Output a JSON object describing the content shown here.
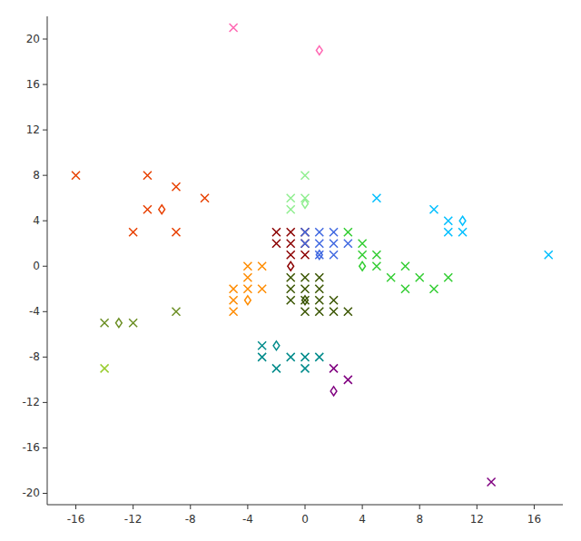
{
  "chart_data": {
    "type": "scatter",
    "series": [
      {
        "color": "#FF69B4",
        "marker": "x",
        "x": [
          -5
        ],
        "values": [
          21
        ]
      },
      {
        "color": "#FF69B4",
        "marker": "diamond",
        "x": [
          1
        ],
        "values": [
          19
        ]
      },
      {
        "color": "#E84000",
        "marker": "x",
        "x": [
          -16,
          -11,
          -9,
          -11,
          -7,
          -12,
          -9
        ],
        "values": [
          8,
          8,
          7,
          5,
          6,
          3,
          3
        ]
      },
      {
        "color": "#E84000",
        "marker": "diamond",
        "x": [
          -10
        ],
        "values": [
          5
        ]
      },
      {
        "color": "#FF8C00",
        "marker": "x",
        "x": [
          -4,
          -3,
          -4,
          -5,
          -3,
          -4,
          -5,
          -5
        ],
        "values": [
          0,
          0,
          -1,
          -2,
          -2,
          -2,
          -3,
          -4
        ]
      },
      {
        "color": "#FF8C00",
        "marker": "diamond",
        "x": [
          -4
        ],
        "values": [
          -3
        ]
      },
      {
        "color": "#8B0000",
        "marker": "x",
        "x": [
          -2,
          -1,
          0,
          -1,
          0,
          -1,
          0,
          -2
        ],
        "values": [
          3,
          3,
          3,
          2,
          2,
          1,
          1,
          2
        ]
      },
      {
        "color": "#8B0000",
        "marker": "diamond",
        "x": [
          -1
        ],
        "values": [
          0
        ]
      },
      {
        "color": "#90EE90",
        "marker": "x",
        "x": [
          0,
          -1,
          -1,
          0
        ],
        "values": [
          8,
          6,
          5,
          6
        ]
      },
      {
        "color": "#90EE90",
        "marker": "diamond",
        "x": [
          0
        ],
        "values": [
          5.5
        ]
      },
      {
        "color": "#32CD32",
        "marker": "x",
        "x": [
          3,
          4,
          4,
          5,
          5,
          6,
          7,
          8,
          7,
          9,
          10
        ],
        "values": [
          3,
          2,
          1,
          1,
          0,
          -1,
          0,
          -1,
          -2,
          -2,
          -1
        ]
      },
      {
        "color": "#32CD32",
        "marker": "diamond",
        "x": [
          4
        ],
        "values": [
          0
        ]
      },
      {
        "color": "#3A5500",
        "marker": "x",
        "x": [
          -1,
          0,
          1,
          -1,
          0,
          1,
          2,
          0,
          1,
          2,
          3,
          -1,
          0,
          1
        ],
        "values": [
          -2,
          -2,
          -2,
          -3,
          -3,
          -3,
          -3,
          -4,
          -4,
          -4,
          -4,
          -1,
          -1,
          -1
        ]
      },
      {
        "color": "#3A5500",
        "marker": "diamond",
        "x": [
          0
        ],
        "values": [
          -3
        ]
      },
      {
        "color": "#4169E1",
        "marker": "x",
        "x": [
          0,
          1,
          2,
          1,
          2,
          3,
          1,
          2,
          0
        ],
        "values": [
          3,
          3,
          3,
          2,
          2,
          2,
          1,
          1,
          2
        ]
      },
      {
        "color": "#4169E1",
        "marker": "diamond",
        "x": [
          1
        ],
        "values": [
          1
        ]
      },
      {
        "color": "#008B8B",
        "marker": "x",
        "x": [
          -3,
          -3,
          -2,
          -1,
          0,
          0,
          1
        ],
        "values": [
          -7,
          -8,
          -9,
          -8,
          -8,
          -9,
          -8
        ]
      },
      {
        "color": "#008B8B",
        "marker": "diamond",
        "x": [
          -2
        ],
        "values": [
          -7
        ]
      },
      {
        "color": "#00BFFF",
        "marker": "x",
        "x": [
          5,
          9,
          10,
          10,
          11,
          17
        ],
        "values": [
          6,
          5,
          4,
          3,
          3,
          1
        ]
      },
      {
        "color": "#00BFFF",
        "marker": "diamond",
        "x": [
          11
        ],
        "values": [
          4
        ]
      },
      {
        "color": "#6B8E23",
        "marker": "x",
        "x": [
          -14,
          -12,
          -9
        ],
        "values": [
          -5,
          -5,
          -4
        ]
      },
      {
        "color": "#6B8E23",
        "marker": "diamond",
        "x": [
          -13
        ],
        "values": [
          -5
        ]
      },
      {
        "color": "#9ACD32",
        "marker": "x",
        "x": [
          -14
        ],
        "values": [
          -9
        ]
      },
      {
        "color": "#800080",
        "marker": "x",
        "x": [
          2,
          3,
          13
        ],
        "values": [
          -9,
          -10,
          -19
        ]
      },
      {
        "color": "#800080",
        "marker": "diamond",
        "x": [
          2
        ],
        "values": [
          -11
        ]
      }
    ],
    "xlim": [
      -18,
      18
    ],
    "ylim": [
      -21,
      22
    ],
    "xticks": [
      -16,
      -12,
      -8,
      -4,
      0,
      4,
      8,
      12,
      16
    ],
    "yticks": [
      -20,
      -16,
      -12,
      -8,
      -4,
      0,
      4,
      8,
      12,
      16,
      20
    ],
    "grid": false
  }
}
